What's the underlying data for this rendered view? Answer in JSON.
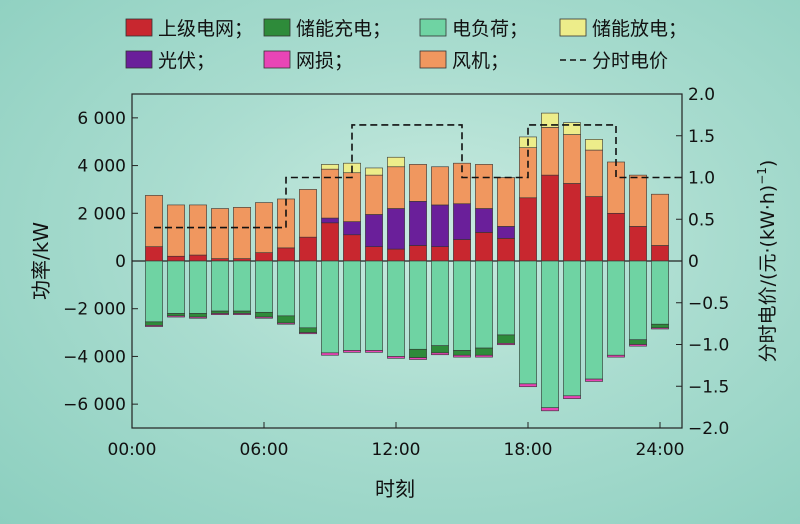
{
  "chart_data": {
    "type": "bar",
    "stacked": true,
    "xlabel": "时刻",
    "ylabel": "功率/kW",
    "y2label": "分时电价/(元·(kW·h)",
    "y2label_sup": "−1",
    "y2label_close": ")",
    "ylim": [
      -7000,
      7000
    ],
    "y2lim": [
      -2.0,
      2.0
    ],
    "yticks": [
      -6000,
      -4000,
      -2000,
      0,
      2000,
      4000,
      6000
    ],
    "ytick_labels": [
      "−6 000",
      "−4 000",
      "−2 000",
      "0",
      "2 000",
      "4 000",
      "6 000"
    ],
    "y2ticks": [
      -2.0,
      -1.5,
      -1.0,
      -0.5,
      0,
      0.5,
      1.0,
      1.5,
      2.0
    ],
    "y2tick_labels": [
      "−2.0",
      "−1.5",
      "−1.0",
      "−0.5",
      "0",
      "0.5",
      "1.0",
      "1.5",
      "2.0"
    ],
    "xlim": [
      0,
      25
    ],
    "xticks": [
      0,
      6,
      12,
      18,
      24
    ],
    "xtick_labels": [
      "00:00",
      "06:00",
      "12:00",
      "18:00",
      "24:00"
    ],
    "hours": [
      1,
      2,
      3,
      4,
      5,
      6,
      7,
      8,
      9,
      10,
      11,
      12,
      13,
      14,
      15,
      16,
      17,
      18,
      19,
      20,
      21,
      22,
      23,
      24
    ],
    "legend": {
      "placement": "top",
      "items": [
        {
          "label": "上级电网；",
          "color": "#c8272f",
          "kind": "box"
        },
        {
          "label": "储能充电；",
          "color": "#2e8b3a",
          "kind": "box"
        },
        {
          "label": "电负荷；",
          "color": "#6fd3a3",
          "kind": "box"
        },
        {
          "label": "储能放电；",
          "color": "#eded8a",
          "kind": "box"
        },
        {
          "label": "光伏；",
          "color": "#6a1f9a",
          "kind": "box"
        },
        {
          "label": "网损；",
          "color": "#e845b6",
          "kind": "box"
        },
        {
          "label": "风机；",
          "color": "#f0975f",
          "kind": "box"
        },
        {
          "label": "分时电价",
          "color": "#111111",
          "kind": "dash"
        }
      ]
    },
    "series_positive": [
      {
        "name": "上级电网",
        "color": "#c8272f",
        "values": [
          600,
          200,
          250,
          100,
          100,
          350,
          550,
          1000,
          1600,
          1100,
          600,
          500,
          650,
          600,
          900,
          1200,
          950,
          2650,
          3600,
          3250,
          2700,
          2000,
          1450,
          650
        ]
      },
      {
        "name": "光伏",
        "color": "#6a1f9a",
        "values": [
          0,
          0,
          0,
          0,
          0,
          0,
          0,
          0,
          200,
          550,
          1350,
          1700,
          1850,
          1750,
          1500,
          1000,
          500,
          0,
          0,
          0,
          0,
          0,
          0,
          0
        ]
      },
      {
        "name": "风机",
        "color": "#f0975f",
        "values": [
          2150,
          2150,
          2100,
          2100,
          2150,
          2100,
          2050,
          2000,
          2050,
          2050,
          1650,
          1750,
          1550,
          1600,
          1700,
          1850,
          2050,
          2100,
          2000,
          2050,
          1950,
          2150,
          2150,
          2150
        ]
      },
      {
        "name": "储能放电",
        "color": "#eded8a",
        "values": [
          0,
          0,
          0,
          0,
          0,
          0,
          0,
          0,
          200,
          400,
          300,
          400,
          0,
          0,
          0,
          0,
          0,
          450,
          600,
          500,
          450,
          0,
          0,
          0
        ]
      }
    ],
    "series_negative": [
      {
        "name": "电负荷",
        "color": "#6fd3a3",
        "values": [
          2550,
          2200,
          2200,
          2100,
          2100,
          2150,
          2300,
          2800,
          3850,
          3750,
          3750,
          4000,
          3700,
          3550,
          3750,
          3650,
          3100,
          5150,
          6150,
          5650,
          4950,
          3950,
          3300,
          2650
        ]
      },
      {
        "name": "储能充电",
        "color": "#2e8b3a",
        "values": [
          150,
          100,
          150,
          100,
          100,
          200,
          300,
          200,
          0,
          0,
          0,
          0,
          350,
          300,
          200,
          300,
          350,
          0,
          0,
          0,
          0,
          0,
          200,
          150
        ]
      },
      {
        "name": "网损",
        "color": "#e845b6",
        "values": [
          50,
          50,
          50,
          50,
          50,
          50,
          50,
          50,
          100,
          80,
          80,
          80,
          80,
          80,
          80,
          80,
          60,
          120,
          130,
          120,
          100,
          80,
          70,
          50
        ]
      }
    ],
    "price_line": {
      "name": "分时电价",
      "color": "#111111",
      "segments": [
        {
          "from": 1,
          "to": 7,
          "price": 0.4
        },
        {
          "from": 7,
          "to": 10,
          "price": 1.0
        },
        {
          "from": 10,
          "to": 15,
          "price": 1.63
        },
        {
          "from": 15,
          "to": 18,
          "price": 1.0
        },
        {
          "from": 18,
          "to": 22,
          "price": 1.63
        },
        {
          "from": 22,
          "to": 25,
          "price": 1.0
        }
      ]
    }
  }
}
